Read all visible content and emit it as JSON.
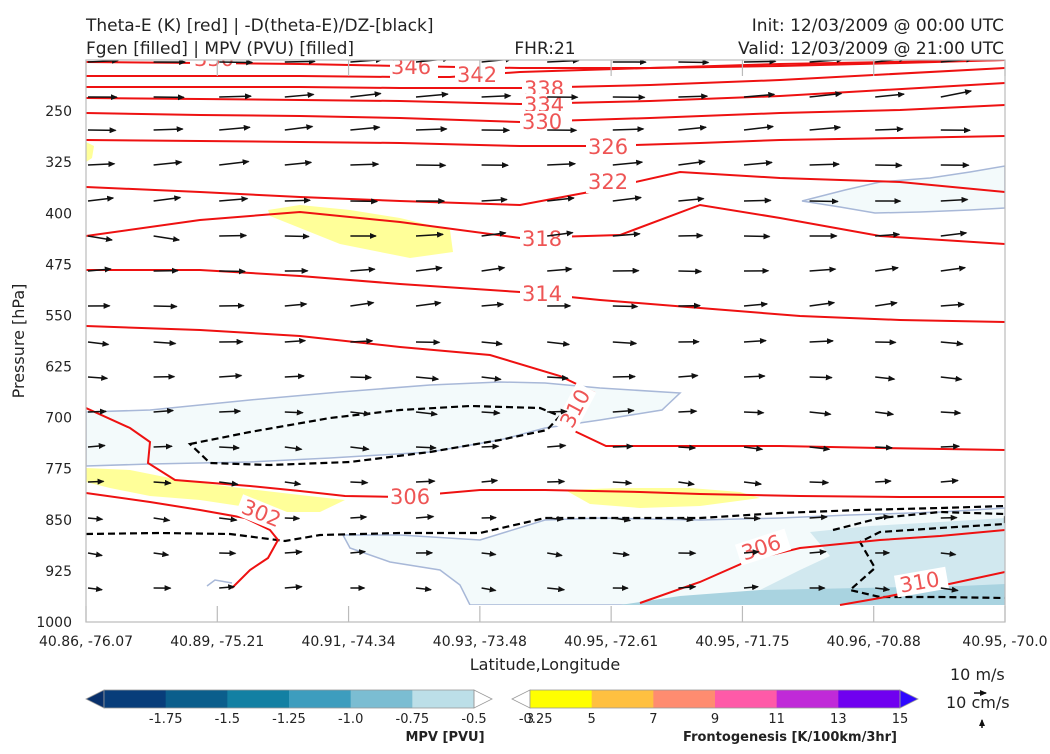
{
  "header": {
    "title_line1": "Theta-E (K) [red] | -D(theta-E)/DZ-[black]",
    "title_line2": "Fgen [filled] | MPV (PVU) [filled]",
    "fhr": "FHR:21",
    "init": "Init: 12/03/2009 @ 00:00 UTC",
    "valid": "Valid: 12/03/2009 @ 21:00 UTC"
  },
  "chart_data": {
    "type": "cross-section",
    "xlabel": "Latitude,Longitude",
    "ylabel": "Pressure [hPa]",
    "x_ticks": [
      "40.86, -76.07",
      "40.89, -75.21",
      "40.91, -74.34",
      "40.93, -73.48",
      "40.95, -72.61",
      "40.95, -71.75",
      "40.96, -70.88",
      "40.95, -70.0"
    ],
    "y_ticks": [
      250,
      325,
      400,
      475,
      550,
      625,
      700,
      775,
      850,
      925,
      1000
    ],
    "ylim": [
      1000,
      175
    ],
    "theta_e_contour_labels": [
      {
        "value": "330",
        "pos": [
          0.09,
          180
        ]
      },
      {
        "value": "346",
        "pos": [
          0.25,
          178
        ]
      },
      {
        "value": "342",
        "pos": [
          0.3,
          186
        ]
      },
      {
        "value": "338",
        "pos": [
          0.35,
          232
        ]
      },
      {
        "value": "334",
        "pos": [
          0.35,
          257
        ]
      },
      {
        "value": "330",
        "pos": [
          0.35,
          284
        ]
      },
      {
        "value": "326",
        "pos": [
          0.42,
          336
        ]
      },
      {
        "value": "322",
        "pos": [
          0.42,
          375
        ]
      },
      {
        "value": "318",
        "pos": [
          0.35,
          458
        ]
      },
      {
        "value": "314",
        "pos": [
          0.35,
          518
        ]
      },
      {
        "value": "310",
        "pos": [
          0.41,
          697
        ]
      },
      {
        "value": "306",
        "pos": [
          0.26,
          812
        ]
      },
      {
        "value": "302",
        "pos": [
          0.13,
          858
        ]
      },
      {
        "value": "306",
        "pos": [
          0.53,
          922
        ]
      },
      {
        "value": "310",
        "pos": [
          0.74,
          962
        ]
      }
    ],
    "wind_reference": {
      "u_label": "10 m/s",
      "w_label": "10 cm/s"
    },
    "mpv_colorbar": {
      "title": "MPV [PVU]",
      "ticks": [
        "-1.75",
        "-1.5",
        "-1.25",
        "-1.0",
        "-0.75",
        "-0.5",
        "-0.25"
      ],
      "colors": [
        "#08306b",
        "#083d7a",
        "#0b5e8c",
        "#1380a3",
        "#3d9dbe",
        "#7bbdd2",
        "#bcdfe8",
        "#ffffff"
      ]
    },
    "fgen_colorbar": {
      "title": "Frontogenesis [K/100km/3hr]",
      "ticks": [
        "3",
        "5",
        "7",
        "9",
        "11",
        "13",
        "15"
      ],
      "colors": [
        "#ffffff",
        "#ffff00",
        "#ffc040",
        "#ff8c70",
        "#ff5aa8",
        "#c02ad8",
        "#7000f0",
        "#2e08ff"
      ]
    },
    "grid": false
  }
}
